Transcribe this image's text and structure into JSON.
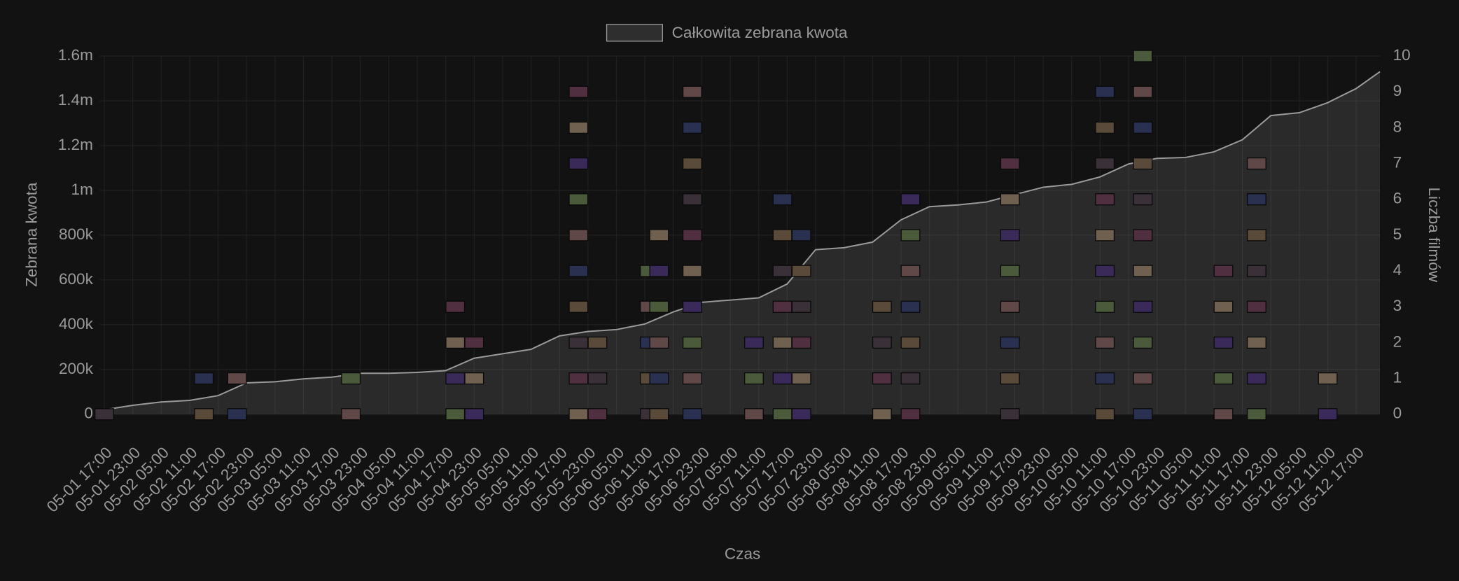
{
  "chart_data": {
    "type": "area",
    "x_label": "Czas",
    "y_label": "Zebrana kwota",
    "y2_label": "Liczba filmów",
    "legend": "top",
    "grid": true,
    "xlim": [
      "05-01 16:00",
      "05-12 22:00"
    ],
    "xticks": [
      "05-01 17:00",
      "05-01 23:00",
      "05-02 05:00",
      "05-02 11:00",
      "05-02 17:00",
      "05-02 23:00",
      "05-03 05:00",
      "05-03 11:00",
      "05-03 17:00",
      "05-03 23:00",
      "05-04 05:00",
      "05-04 11:00",
      "05-04 17:00",
      "05-04 23:00",
      "05-05 05:00",
      "05-05 11:00",
      "05-05 17:00",
      "05-05 23:00",
      "05-06 05:00",
      "05-06 11:00",
      "05-06 17:00",
      "05-06 23:00",
      "05-07 05:00",
      "05-07 11:00",
      "05-07 17:00",
      "05-07 23:00",
      "05-08 05:00",
      "05-08 11:00",
      "05-08 17:00",
      "05-08 23:00",
      "05-09 05:00",
      "05-09 11:00",
      "05-09 17:00",
      "05-09 23:00",
      "05-10 05:00",
      "05-10 11:00",
      "05-10 17:00",
      "05-10 23:00",
      "05-11 05:00",
      "05-11 11:00",
      "05-11 17:00",
      "05-11 23:00",
      "05-12 05:00",
      "05-12 11:00",
      "05-12 17:00"
    ],
    "ylim": [
      0,
      1600000
    ],
    "yticks": [
      0,
      {
        "value": 200000,
        "label": "200k"
      },
      {
        "value": 400000,
        "label": "400k"
      },
      {
        "value": 600000,
        "label": "600k"
      },
      {
        "value": 800000,
        "label": "800k"
      },
      {
        "value": 1000000,
        "label": "1m"
      },
      {
        "value": 1200000,
        "label": "1.2m"
      },
      {
        "value": 1400000,
        "label": "1.4m"
      },
      {
        "value": 1600000,
        "label": "1.6m"
      }
    ],
    "y2lim": [
      0,
      10
    ],
    "y2ticks": [
      0,
      1,
      2,
      3,
      4,
      5,
      6,
      7,
      8,
      9,
      10
    ],
    "x": [
      "05-01 17:00",
      "05-01 23:00",
      "05-02 05:00",
      "05-02 11:00",
      "05-02 17:00",
      "05-02 23:00",
      "05-03 05:00",
      "05-03 11:00",
      "05-03 17:00",
      "05-03 23:00",
      "05-04 05:00",
      "05-04 11:00",
      "05-04 17:00",
      "05-04 23:00",
      "05-05 05:00",
      "05-05 11:00",
      "05-05 17:00",
      "05-05 23:00",
      "05-06 05:00",
      "05-06 11:00",
      "05-06 17:00",
      "05-06 23:00",
      "05-07 05:00",
      "05-07 11:00",
      "05-07 17:00",
      "05-07 23:00",
      "05-08 05:00",
      "05-08 11:00",
      "05-08 17:00",
      "05-08 23:00",
      "05-09 05:00",
      "05-09 11:00",
      "05-09 17:00",
      "05-09 23:00",
      "05-10 05:00",
      "05-10 11:00",
      "05-10 17:00",
      "05-10 23:00",
      "05-11 05:00",
      "05-11 11:00",
      "05-11 17:00",
      "05-11 23:00",
      "05-12 05:00",
      "05-12 11:00",
      "05-12 17:00",
      "05-12 22:00"
    ],
    "series": [
      {
        "name": "Całkowita zebrana kwota",
        "color": "#9a9a9a",
        "values": [
          20000,
          40000,
          55000,
          62000,
          83000,
          140000,
          145000,
          158000,
          166000,
          183000,
          183000,
          187000,
          195000,
          250000,
          270000,
          290000,
          350000,
          370000,
          378000,
          403000,
          457000,
          500000,
          510000,
          520000,
          582000,
          735000,
          744000,
          769000,
          868000,
          927000,
          935000,
          948000,
          981000,
          1014000,
          1027000,
          1060000,
          1118000,
          1143000,
          1147000,
          1172000,
          1226000,
          1334000,
          1347000,
          1392000,
          1455000,
          1530000
        ]
      }
    ],
    "film_counts": {
      "axis": "y2",
      "x": [
        "05-01 17:00",
        "05-02 14:00",
        "05-02 21:00",
        "05-03 21:00",
        "05-04 19:00",
        "05-04 23:00",
        "05-05 21:00",
        "05-06 01:00",
        "05-06 12:00",
        "05-06 14:00",
        "05-06 21:00",
        "05-07 10:00",
        "05-07 16:00",
        "05-07 20:00",
        "05-08 13:00",
        "05-08 19:00",
        "05-09 16:00",
        "05-10 12:00",
        "05-10 20:00",
        "05-11 13:00",
        "05-11 20:00",
        "05-12 11:00"
      ],
      "values": [
        0,
        1,
        1,
        1,
        3,
        2,
        9,
        2,
        4,
        5,
        9,
        2,
        6,
        5,
        3,
        6,
        7,
        9,
        10,
        4,
        7,
        1
      ]
    }
  }
}
